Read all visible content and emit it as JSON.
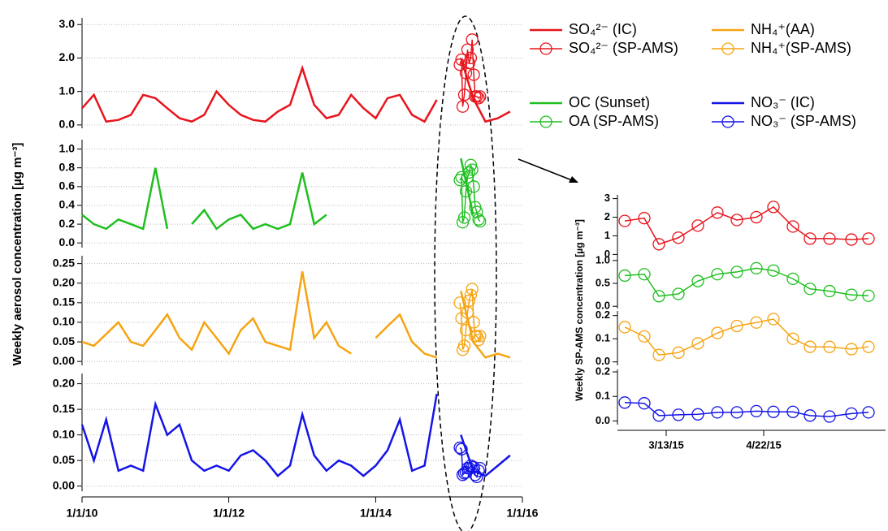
{
  "chart_data": [
    {
      "type": "line",
      "y_label": "Weekly aerosol concentration [µg m⁻³]",
      "xlim": [
        "1/1/10",
        "1/1/16"
      ],
      "xticks": [
        "1/1/10",
        "1/1/12",
        "1/1/14",
        "1/1/16"
      ],
      "x": [
        "1/1/10",
        "3/1/10",
        "5/1/10",
        "7/1/10",
        "9/1/10",
        "11/1/10",
        "1/1/11",
        "3/1/11",
        "5/1/11",
        "7/1/11",
        "9/1/11",
        "11/1/11",
        "1/1/12",
        "3/1/12",
        "5/1/12",
        "7/1/12",
        "9/1/12",
        "11/1/12",
        "1/1/13",
        "3/1/13",
        "5/1/13",
        "7/1/13",
        "9/1/13",
        "11/1/13",
        "1/1/14",
        "3/1/14",
        "5/1/14",
        "7/1/14",
        "9/1/14",
        "11/1/14",
        "1/1/15",
        "3/1/15",
        "5/1/15",
        "7/1/15",
        "9/1/15",
        "11/1/15"
      ],
      "panels": [
        {
          "ylim": [
            -0.1,
            3.2
          ],
          "yticks": [
            {
              "value": 0,
              "label": "0.0"
            },
            {
              "value": 1,
              "label": "1.0"
            },
            {
              "value": 2,
              "label": "2.0"
            },
            {
              "value": 3,
              "label": "3.0"
            }
          ],
          "series": [
            {
              "name": "SO₄²⁻ (IC)",
              "color": "#e8141c",
              "values": [
                0.5,
                0.9,
                0.1,
                0.15,
                0.3,
                0.9,
                0.8,
                0.5,
                0.2,
                0.1,
                0.3,
                1.0,
                0.6,
                0.3,
                0.15,
                0.1,
                0.4,
                0.6,
                1.7,
                0.6,
                0.2,
                0.3,
                0.9,
                0.5,
                0.2,
                0.8,
                0.9,
                0.3,
                0.1,
                0.75,
                null,
                2.0,
                0.8,
                0.1,
                0.2,
                0.4
              ]
            },
            {
              "name": "SO₄²⁻ (SP-AMS)",
              "color": "#e8141c",
              "marker": "circle",
              "x": [
                "2/24/15",
                "3/4/15",
                "3/10/15",
                "3/18/15",
                "3/26/15",
                "4/3/15",
                "4/11/15",
                "4/19/15",
                "4/26/15",
                "5/4/15",
                "5/11/15",
                "5/19/15",
                "5/28/15",
                "6/4/15"
              ],
              "values": [
                1.8,
                1.95,
                0.55,
                0.9,
                1.55,
                2.25,
                1.85,
                2.0,
                2.55,
                1.5,
                0.85,
                0.85,
                0.8,
                0.85
              ]
            }
          ]
        },
        {
          "ylim": [
            -0.05,
            1.1
          ],
          "yticks": [
            {
              "value": 0,
              "label": "0.0"
            },
            {
              "value": 0.2,
              "label": "0.2"
            },
            {
              "value": 0.4,
              "label": "0.4"
            },
            {
              "value": 0.6,
              "label": "0.6"
            },
            {
              "value": 0.8,
              "label": "0.8"
            },
            {
              "value": 1,
              "label": "1.0"
            }
          ],
          "series": [
            {
              "name": "OC (Sunset)",
              "color": "#1fbf1f",
              "values": [
                0.3,
                0.2,
                0.15,
                0.25,
                0.2,
                0.15,
                0.8,
                0.15,
                null,
                0.2,
                0.35,
                0.15,
                0.25,
                0.3,
                0.15,
                0.2,
                0.15,
                0.2,
                0.75,
                0.2,
                0.3,
                null,
                null,
                null,
                null,
                null,
                null,
                null,
                null,
                null,
                null,
                0.9,
                0.3,
                null,
                null,
                null
              ]
            },
            {
              "name": "OA (SP-AMS)",
              "color": "#1fbf1f",
              "marker": "circle",
              "x": [
                "2/24/15",
                "3/4/15",
                "3/10/15",
                "3/18/15",
                "3/26/15",
                "4/3/15",
                "4/11/15",
                "4/19/15",
                "4/26/15",
                "5/4/15",
                "5/11/15",
                "5/19/15",
                "5/28/15",
                "6/4/15"
              ],
              "values": [
                0.67,
                0.7,
                0.22,
                0.27,
                0.55,
                0.7,
                0.75,
                0.83,
                0.78,
                0.6,
                0.38,
                0.33,
                0.25,
                0.23
              ]
            }
          ]
        },
        {
          "ylim": [
            -0.01,
            0.27
          ],
          "yticks": [
            {
              "value": 0,
              "label": "0.00"
            },
            {
              "value": 0.05,
              "label": "0.05"
            },
            {
              "value": 0.1,
              "label": "0.10"
            },
            {
              "value": 0.15,
              "label": "0.15"
            },
            {
              "value": 0.2,
              "label": "0.20"
            },
            {
              "value": 0.25,
              "label": "0.25"
            }
          ],
          "series": [
            {
              "name": "NH₄⁺(AA)",
              "color": "#f5a412",
              "values": [
                0.05,
                0.04,
                0.07,
                0.1,
                0.05,
                0.04,
                0.08,
                0.12,
                0.06,
                0.03,
                0.1,
                0.06,
                0.02,
                0.08,
                0.11,
                0.05,
                0.04,
                0.03,
                0.23,
                0.06,
                0.1,
                0.04,
                0.02,
                null,
                0.06,
                0.09,
                0.12,
                0.05,
                0.02,
                0.01,
                null,
                0.18,
                0.05,
                0.01,
                0.02,
                0.01
              ]
            },
            {
              "name": "NH₄⁺(SP-AMS)",
              "color": "#f5a412",
              "marker": "circle",
              "x": [
                "2/24/15",
                "3/4/15",
                "3/10/15",
                "3/18/15",
                "3/26/15",
                "4/3/15",
                "4/11/15",
                "4/19/15",
                "4/26/15",
                "5/4/15",
                "5/11/15",
                "5/19/15",
                "5/28/15",
                "6/4/15"
              ],
              "values": [
                0.15,
                0.11,
                0.03,
                0.04,
                0.08,
                0.125,
                0.155,
                0.17,
                0.185,
                0.1,
                0.065,
                0.065,
                0.055,
                0.065
              ]
            }
          ]
        },
        {
          "ylim": [
            -0.01,
            0.22
          ],
          "yticks": [
            {
              "value": 0,
              "label": "0.00"
            },
            {
              "value": 0.05,
              "label": "0.05"
            },
            {
              "value": 0.1,
              "label": "0.10"
            },
            {
              "value": 0.15,
              "label": "0.15"
            },
            {
              "value": 0.2,
              "label": "0.20"
            }
          ],
          "series": [
            {
              "name": "NO₃⁻ (IC)",
              "color": "#1414e8",
              "values": [
                0.12,
                0.05,
                0.13,
                0.03,
                0.04,
                0.03,
                0.16,
                0.1,
                0.12,
                0.05,
                0.03,
                0.04,
                0.03,
                0.06,
                0.07,
                0.05,
                0.02,
                0.04,
                0.14,
                0.06,
                0.03,
                0.05,
                0.04,
                0.02,
                0.04,
                0.07,
                0.13,
                0.03,
                0.04,
                0.18,
                null,
                0.1,
                0.03,
                0.02,
                0.04,
                0.06
              ]
            },
            {
              "name": "NO₃⁻ (SP-AMS)",
              "color": "#1414e8",
              "marker": "circle",
              "x": [
                "2/24/15",
                "3/4/15",
                "3/10/15",
                "3/18/15",
                "3/26/15",
                "4/3/15",
                "4/11/15",
                "4/19/15",
                "4/26/15",
                "5/4/15",
                "5/11/15",
                "5/19/15",
                "5/28/15",
                "6/4/15"
              ],
              "values": [
                0.075,
                0.072,
                0.022,
                0.025,
                0.027,
                0.035,
                0.035,
                0.04,
                0.037,
                0.037,
                0.022,
                0.018,
                0.03,
                0.035
              ]
            }
          ]
        }
      ]
    },
    {
      "type": "line",
      "y_label": "Weekly SP-AMS concentration [µg m⁻³]",
      "xlim": [
        "2/21/15",
        "6/11/15"
      ],
      "xticks": [
        "3/13/15",
        "4/22/15"
      ],
      "x": [
        "2/24/15",
        "3/4/15",
        "3/10/15",
        "3/18/15",
        "3/26/15",
        "4/3/15",
        "4/11/15",
        "4/19/15",
        "4/26/15",
        "5/4/15",
        "5/11/15",
        "5/19/15",
        "5/28/15",
        "6/4/15"
      ],
      "panels": [
        {
          "ylim": [
            -0.2,
            3.2
          ],
          "yticks": [
            0,
            1,
            2,
            3
          ],
          "series": [
            {
              "color": "#e8141c",
              "marker": "circle",
              "values": [
                1.8,
                1.95,
                0.55,
                0.9,
                1.55,
                2.25,
                1.85,
                2.0,
                2.55,
                1.5,
                0.85,
                0.85,
                0.8,
                0.85
              ]
            }
          ]
        },
        {
          "ylim": [
            -0.05,
            1.05
          ],
          "yticks": [
            {
              "value": 0,
              "label": "0.0"
            },
            {
              "value": 0.5,
              "label": "0.5"
            },
            {
              "value": 1,
              "label": "1.0"
            }
          ],
          "series": [
            {
              "color": "#1fbf1f",
              "marker": "circle",
              "values": [
                0.67,
                0.7,
                0.22,
                0.27,
                0.55,
                0.7,
                0.75,
                0.83,
                0.78,
                0.6,
                0.38,
                0.33,
                0.25,
                0.23
              ]
            }
          ]
        },
        {
          "ylim": [
            -0.015,
            0.22
          ],
          "yticks": [
            {
              "value": 0,
              "label": "0.0"
            },
            {
              "value": 0.1,
              "label": "0.1"
            },
            {
              "value": 0.2,
              "label": "0.2"
            }
          ],
          "series": [
            {
              "color": "#f5a412",
              "marker": "circle",
              "values": [
                0.15,
                0.11,
                0.03,
                0.04,
                0.08,
                0.125,
                0.155,
                0.17,
                0.185,
                0.1,
                0.065,
                0.065,
                0.055,
                0.065
              ]
            }
          ]
        },
        {
          "ylim": [
            -0.015,
            0.21
          ],
          "yticks": [
            {
              "value": 0,
              "label": "0.0"
            },
            {
              "value": 0.1,
              "label": "0.1"
            },
            {
              "value": 0.2,
              "label": "0.2"
            }
          ],
          "series": [
            {
              "color": "#1414e8",
              "marker": "circle",
              "values": [
                0.075,
                0.072,
                0.022,
                0.025,
                0.027,
                0.035,
                0.035,
                0.04,
                0.037,
                0.037,
                0.022,
                0.018,
                0.03,
                0.035
              ]
            }
          ]
        }
      ]
    }
  ]
}
